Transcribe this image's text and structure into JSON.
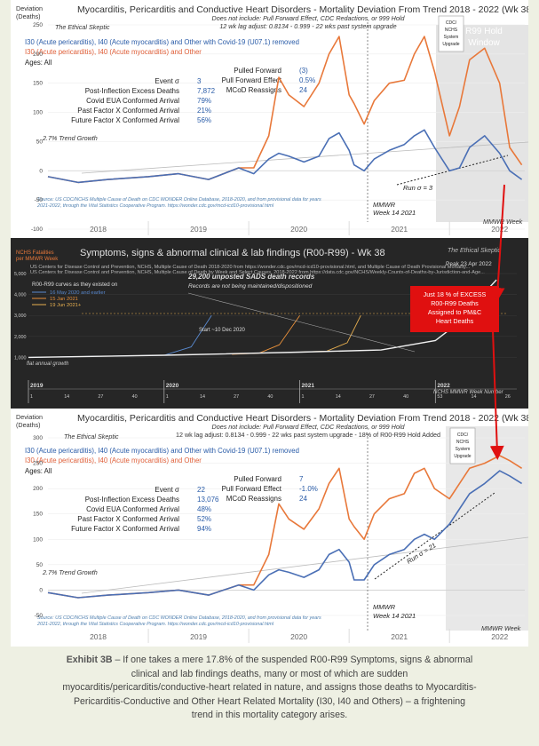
{
  "panel1": {
    "title": "Myocarditis, Pericarditis and Conductive Heart Disorders - Mortality Deviation From Trend  2018 - 2022 (Wk 38)",
    "yaxis_label_1": "Deviation",
    "yaxis_label_2": "(Deaths)",
    "sub1": "Does not include: Pull Forward Effect, CDC Redactions, or 999 Hold",
    "sub2": "12 wk lag adjust: 0.8134 - 0.999 - 22 wks past system upgrade",
    "legend_blue": "I30 (Acute pericarditis), I40 (Acute myocarditis) and Other with Covid-19 (U07.1) removed",
    "legend_orange": "I30 (Acute pericarditis), I40 (Acute myocarditis) and Other",
    "ages": "Ages: All",
    "stats": [
      {
        "label": "Event σ",
        "value": "3"
      },
      {
        "label": "Post-Inflection Excess Deaths",
        "value": "7,872"
      },
      {
        "label": "Covid EUA Conformed Arrival",
        "value": "79%"
      },
      {
        "label": "Past Factor X Conformed Arrival",
        "value": "21%"
      },
      {
        "label": "Future Factor X Conformed Arrival",
        "value": "56%"
      }
    ],
    "stats_right": [
      {
        "label": "Pulled Forward",
        "value": "(3)"
      },
      {
        "label": "Pull Forward Effect",
        "value": "0.5%"
      },
      {
        "label": "MCoD Reassigns",
        "value": "24"
      }
    ],
    "trend_label": "2.7% Trend Growth",
    "watermark": "The Ethical Skeptic",
    "cdc_box": [
      "CDC/",
      "NCHS",
      "System",
      "Upgrade"
    ],
    "hold_label_1": "R99 Hold",
    "hold_label_2": "Window",
    "run_label": "Run σ = 3",
    "mmwr_1": "MMWR",
    "mmwr_2": "Week 14 2021",
    "mmwr_week": "MMWR Week",
    "source_1": "Source: US CDC/NCHS Multiple Cause of Death on CDC WONDER Online Database, 2018-2020, and from provisional data for years",
    "source_2": "2021-2022, through the Vital Statistics Cooperative Program. https://wonder.cdc.gov/mcd-icd10-provisional.html"
  },
  "panel2": {
    "title": "Symptoms, signs & abnormal clinical & lab findings (R00-R99) - Wk 38",
    "ylabel_1": "NCHS Fatalities",
    "ylabel_2": "per MMWR Week",
    "src_1": "US Centers for Disease Control and Prevention, NCHS, Multiple Cause of Death 2018-2020 from https://wonder.cdc.gov/mcd-icd10-provisional.html, and Multiple Cause of Death Provisional Mortality...",
    "src_2": "US Centers for Disease Control and Prevention, NCHS, Multiple Cause of Death by Week and Select Causes, 2018-2022 from https://data.cdc.gov/NCHS/Weekly-Counts-of-Deaths-by-Jurisdiction-and-Age...",
    "curves_title": "R00-R99 curves as they existed on",
    "curve_labels": [
      "16 May 2020 and earlier",
      "15 Jan 2021",
      "19 Jun 2021+"
    ],
    "sads_1": "29,200 unposted SADS death records",
    "sads_2": "Records are not being maintained/dispositioned",
    "callout": [
      "Just 18 % of EXCESS",
      "R00-R99 Deaths",
      "Assigned to PM&C",
      "Heart Deaths"
    ],
    "peak": "Peak 23 Apr 2022",
    "start": "Start ~10 Dec 2020",
    "flat": "flat annual growth",
    "watermark": "The Ethical Skeptic",
    "years": [
      "2019",
      "2020",
      "2021",
      "2022"
    ],
    "week_label": "NCHS MMWR Week Number",
    "ticks": [
      "1",
      "14",
      "27",
      "40",
      "1",
      "14",
      "27",
      "40",
      "1",
      "14",
      "27",
      "40",
      "53",
      "14",
      "26"
    ],
    "yticks": [
      "5,000",
      "4,000",
      "3,000",
      "2,000",
      "1,000"
    ]
  },
  "panel3": {
    "title": "Myocarditis, Pericarditis and Conductive Heart Disorders - Mortality Deviation From Trend  2018 - 2022 (Wk 38)",
    "yaxis_label_1": "Deviation",
    "yaxis_label_2": "(Deaths)",
    "sub1": "Does not include: Pull Forward Effect, CDC Redactions, or 999 Hold",
    "sub2": "12 wk lag adjust: 0.8134 - 0.999 - 22 wks past system upgrade - 18% of R00-R99 Hold Added",
    "legend_blue": "I30 (Acute pericarditis), I40 (Acute myocarditis) and Other with Covid-19 (U07.1) removed",
    "legend_orange": "I30 (Acute pericarditis), I40 (Acute myocarditis) and Other",
    "ages": "Ages: All",
    "stats": [
      {
        "label": "Event σ",
        "value": "22"
      },
      {
        "label": "Post-Inflection Excess Deaths",
        "value": "13,076"
      },
      {
        "label": "Covid EUA Conformed Arrival",
        "value": "48%"
      },
      {
        "label": "Past Factor X Conformed Arrival",
        "value": "52%"
      },
      {
        "label": "Future Factor X Conformed Arrival",
        "value": "94%"
      }
    ],
    "stats_right": [
      {
        "label": "Pulled Forward",
        "value": "7"
      },
      {
        "label": "Pull Forward Effect",
        "value": "-1.0%"
      },
      {
        "label": "MCoD Reassigns",
        "value": "24"
      }
    ],
    "trend_label": "2.7% Trend Growth",
    "watermark": "The Ethical Skeptic",
    "cdc_box": [
      "CDC/",
      "NCHS",
      "System",
      "Upgrade"
    ],
    "run_label": "Run σ = 21",
    "mmwr_1": "MMWR",
    "mmwr_2": "Week 14 2021",
    "mmwr_week": "MMWR Week",
    "source_1": "Source: US CDC/NCHS Multiple Cause of Death on CDC WONDER Online Database, 2018-2020, and from provisional data for years",
    "source_2": "2021-2022, through the Vital Statistics Cooperative Program. https://wonder.cdc.gov/mcd-icd10-provisional.html"
  },
  "caption": {
    "lead": "Exhibit 3B",
    "text": " – If one takes a mere 17.8% of the suspended R00-R99 Symptoms, signs & abnormal clinical and lab findings deaths, many or most of which are sudden myocarditis/pericarditis/conductive-heart related in nature, and assigns those deaths to Myocarditis-Pericarditis-Conductive and Other Heart Related Mortality (I30, I40 and Others) – a frightening trend in this mortality category arises."
  },
  "colors": {
    "blue": "#4a6fb5",
    "orange": "#e8783a",
    "red": "#e01010"
  },
  "chart_data": [
    {
      "type": "line",
      "title": "Myocarditis, Pericarditis and Conductive Heart Disorders - Mortality Deviation From Trend  2018 - 2022 (Wk 38)",
      "ylabel": "Deviation (Deaths)",
      "ylim": [
        -100,
        250
      ],
      "yticks": [
        -100,
        -50,
        0,
        50,
        100,
        150,
        200,
        250
      ],
      "x_categories": [
        "2018",
        "2019",
        "2020",
        "2021",
        "2022"
      ],
      "series": [
        {
          "name": "I30 (Acute pericarditis), I40 (Acute myocarditis) and Other",
          "x": [
            2018.0,
            2018.3,
            2018.6,
            2019.0,
            2019.3,
            2019.6,
            2019.9,
            2020.05,
            2020.2,
            2020.3,
            2020.4,
            2020.55,
            2020.7,
            2020.8,
            2020.9,
            2021.0,
            2021.05,
            2021.15,
            2021.25,
            2021.4,
            2021.55,
            2021.65,
            2021.75,
            2021.85,
            2022.0,
            2022.1,
            2022.2,
            2022.35,
            2022.5,
            2022.6,
            2022.72
          ],
          "values": [
            -10,
            -20,
            -15,
            -10,
            -5,
            -15,
            5,
            5,
            60,
            160,
            130,
            110,
            150,
            200,
            230,
            130,
            115,
            80,
            120,
            150,
            155,
            200,
            230,
            170,
            60,
            110,
            190,
            210,
            150,
            40,
            10
          ]
        },
        {
          "name": "I30 (Acute pericarditis), I40 (Acute myocarditis) and Other with Covid-19 (U07.1) removed",
          "x": [
            2018.0,
            2018.3,
            2018.6,
            2019.0,
            2019.3,
            2019.6,
            2019.9,
            2020.05,
            2020.2,
            2020.3,
            2020.4,
            2020.55,
            2020.7,
            2020.8,
            2020.9,
            2021.0,
            2021.05,
            2021.15,
            2021.25,
            2021.4,
            2021.55,
            2021.65,
            2021.75,
            2021.85,
            2022.0,
            2022.1,
            2022.2,
            2022.35,
            2022.5,
            2022.6,
            2022.72
          ],
          "values": [
            -10,
            -20,
            -15,
            -10,
            -5,
            -15,
            5,
            -5,
            20,
            30,
            25,
            15,
            25,
            55,
            65,
            35,
            10,
            0,
            20,
            35,
            45,
            60,
            70,
            40,
            0,
            5,
            40,
            60,
            30,
            0,
            -15
          ]
        }
      ]
    },
    {
      "type": "line",
      "title": "Symptoms, signs & abnormal clinical & lab findings (R00-R99) - Wk 38",
      "ylabel": "NCHS Fatalities per MMWR Week",
      "ylim": [
        0,
        5000
      ],
      "series": [
        {
          "name": "16 May 2020 and earlier",
          "x": [
            2019.0,
            2019.5,
            2020.0,
            2020.2,
            2020.35
          ],
          "values": [
            1000,
            1050,
            1100,
            1500,
            3000
          ]
        },
        {
          "name": "15 Jan 2021",
          "x": [
            2020.5,
            2020.7,
            2020.85,
            2021.0
          ],
          "values": [
            1150,
            1200,
            1600,
            3000
          ]
        },
        {
          "name": "19 Jun 2021+",
          "x": [
            2021.0,
            2021.2,
            2021.35,
            2021.45
          ],
          "values": [
            1250,
            1300,
            1700,
            3000
          ]
        },
        {
          "name": "current",
          "x": [
            2019.0,
            2020.0,
            2021.0,
            2021.6,
            2022.0,
            2022.2,
            2022.35,
            2022.45
          ],
          "values": [
            1000,
            1100,
            1250,
            1350,
            1800,
            2800,
            4000,
            4700
          ]
        }
      ]
    },
    {
      "type": "line",
      "title": "Myocarditis, Pericarditis and Conductive Heart Disorders - Mortality Deviation From Trend  2018 - 2022 (Wk 38)",
      "ylabel": "Deviation (Deaths)",
      "ylim": [
        -50,
        300
      ],
      "yticks": [
        -50,
        0,
        50,
        100,
        150,
        200,
        250,
        300
      ],
      "x_categories": [
        "2018",
        "2019",
        "2020",
        "2021",
        "2022"
      ],
      "series": [
        {
          "name": "I30 (Acute pericarditis), I40 (Acute myocarditis) and Other",
          "x": [
            2018.0,
            2018.3,
            2018.6,
            2019.0,
            2019.3,
            2019.6,
            2019.9,
            2020.05,
            2020.2,
            2020.3,
            2020.4,
            2020.55,
            2020.7,
            2020.8,
            2020.9,
            2021.0,
            2021.05,
            2021.15,
            2021.25,
            2021.4,
            2021.55,
            2021.65,
            2021.75,
            2021.85,
            2022.0,
            2022.1,
            2022.2,
            2022.35,
            2022.5,
            2022.6,
            2022.72
          ],
          "values": [
            -5,
            -15,
            -10,
            -5,
            0,
            -10,
            10,
            10,
            70,
            170,
            140,
            120,
            160,
            210,
            240,
            140,
            125,
            100,
            150,
            180,
            190,
            230,
            240,
            200,
            180,
            210,
            240,
            250,
            265,
            255,
            240
          ]
        },
        {
          "name": "I30 (Acute pericarditis), I40 (Acute myocarditis) and Other with Covid-19 (U07.1) removed",
          "x": [
            2018.0,
            2018.3,
            2018.6,
            2019.0,
            2019.3,
            2019.6,
            2019.9,
            2020.05,
            2020.2,
            2020.3,
            2020.4,
            2020.55,
            2020.7,
            2020.8,
            2020.9,
            2021.0,
            2021.05,
            2021.15,
            2021.25,
            2021.4,
            2021.55,
            2021.65,
            2021.75,
            2021.85,
            2022.0,
            2022.1,
            2022.2,
            2022.35,
            2022.5,
            2022.6,
            2022.72
          ],
          "values": [
            -5,
            -15,
            -10,
            -5,
            0,
            -10,
            10,
            0,
            30,
            40,
            35,
            25,
            40,
            70,
            80,
            55,
            20,
            20,
            50,
            70,
            80,
            100,
            110,
            100,
            130,
            160,
            190,
            210,
            235,
            225,
            210
          ]
        }
      ]
    }
  ]
}
